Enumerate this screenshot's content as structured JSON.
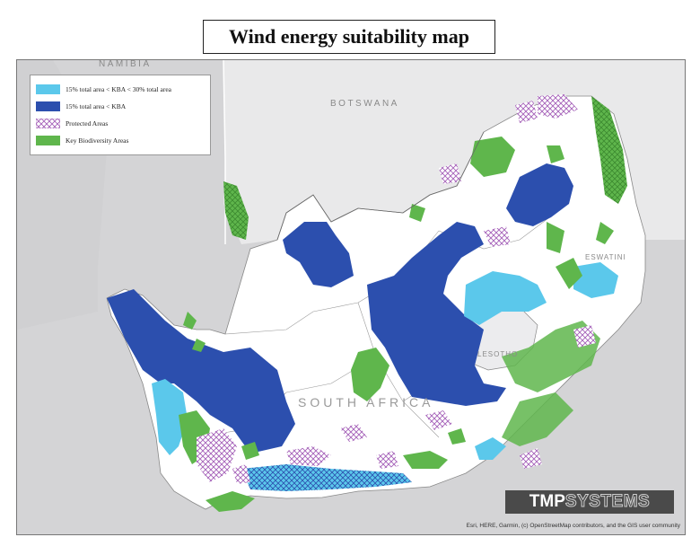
{
  "title": "Wind energy suitability map",
  "legend": [
    {
      "label": "15% total area < KBA < 30% total area",
      "color": "#5bc8eb"
    },
    {
      "label": "15% total area < KBA",
      "color": "#2c4fae"
    },
    {
      "label": "Protected Areas",
      "color": "#a45fb8",
      "pattern": "crosshatch"
    },
    {
      "label": "Key Biodiversity Areas",
      "color": "#5fb64c"
    }
  ],
  "places": {
    "namibia": "NAMIBIA",
    "botswana": "BOTSWANA",
    "south_africa": "SOUTH AFRICA",
    "lesotho": "LESOTHO",
    "eswatini": "ESWATINI"
  },
  "brand": {
    "part1": "TMP",
    "part2": "SYSTEMS"
  },
  "attribution": "Esri, HERE, Garmin, (c) OpenStreetMap contributors, and the GIS user community"
}
